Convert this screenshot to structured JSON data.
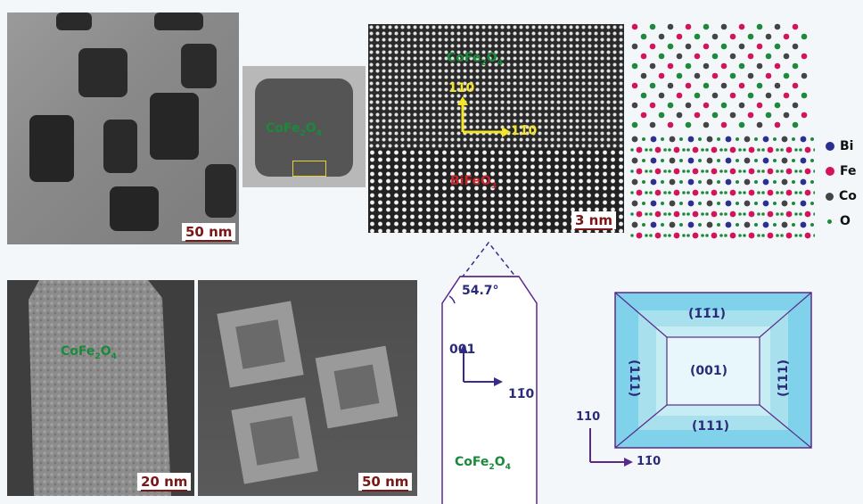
{
  "panels": {
    "tem_overview": {
      "scale_bar": "50 nm"
    },
    "tem_single": {
      "label": "CoFe2O4"
    },
    "hrtem": {
      "label_top": "CoFe2O4",
      "label_bottom": "BiFeO3",
      "axis_vertical": "110",
      "axis_horizontal": "11̄0",
      "scale_bar": "3 nm"
    },
    "legend": {
      "items": [
        {
          "label": "Bi",
          "color": "#2b2f8f"
        },
        {
          "label": "Fe",
          "color": "#d4145a"
        },
        {
          "label": "Co",
          "color": "#444444"
        },
        {
          "label": "O",
          "color": "#1c8a3a"
        }
      ]
    },
    "cross_section": {
      "label": "CoFe2O4",
      "scale_bar": "20 nm"
    },
    "sem": {
      "scale_bar": "50 nm"
    },
    "schematic_side": {
      "angle": "54.7°",
      "axis_vertical": "001",
      "axis_horizontal": "11̄0",
      "label": "CoFe2O4"
    },
    "schematic_top": {
      "facet_top": "(1̄1̄1)",
      "facet_left": "(11̄1)",
      "facet_center": "(001)",
      "facet_right": "(1̄11)",
      "facet_bottom": "(111)",
      "axis_vertical": "110",
      "axis_horizontal": "11̄0"
    }
  }
}
